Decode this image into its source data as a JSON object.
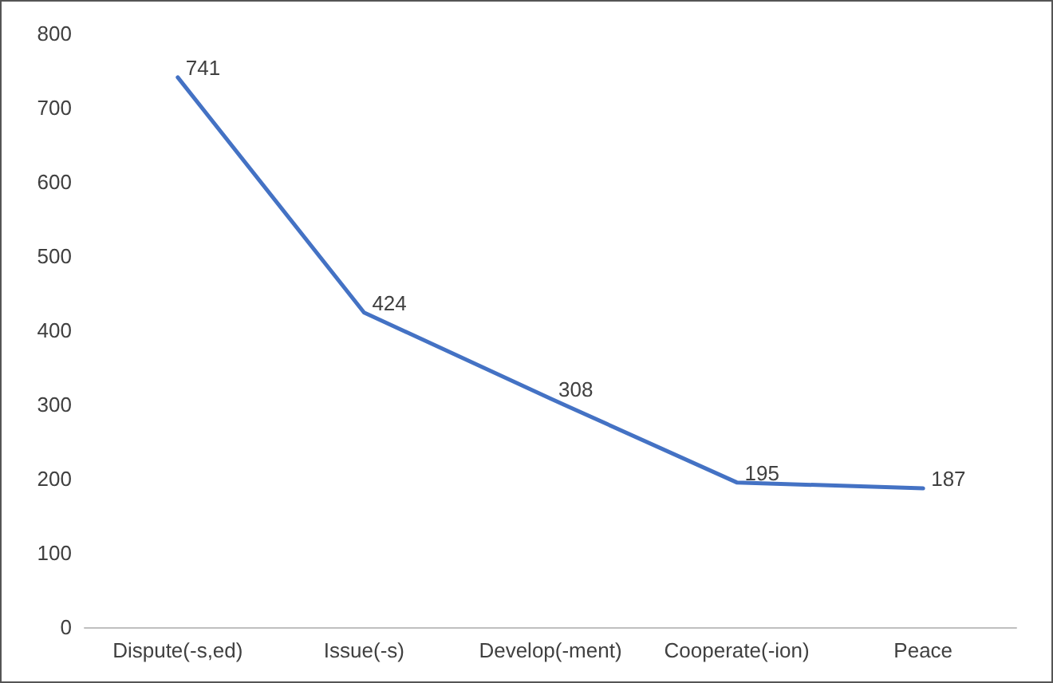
{
  "chart_data": {
    "type": "line",
    "categories": [
      "Dispute(-s,ed)",
      "Issue(-s)",
      "Develop(-ment)",
      "Cooperate(-ion)",
      "Peace"
    ],
    "series": [
      {
        "color": "#4472c4",
        "values": [
          741,
          424,
          308,
          195,
          187
        ]
      }
    ],
    "ylim": [
      0,
      800
    ],
    "yticks": [
      0,
      100,
      200,
      300,
      400,
      500,
      600,
      700,
      800
    ],
    "data_labels": true,
    "grid": false,
    "marker": "none",
    "line_style": "solid"
  }
}
